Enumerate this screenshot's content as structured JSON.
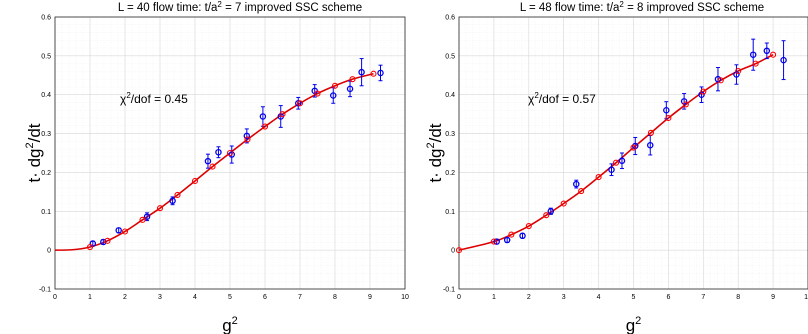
{
  "chart_data": [
    {
      "type": "scatter",
      "title_parts": [
        "L = 40  flow time: t/a",
        "2",
        " = 7   improved SSC scheme"
      ],
      "xlabel_parts": [
        "g",
        "2"
      ],
      "ylabel_parts": [
        "t",
        "·",
        " dg",
        "2",
        "/dt"
      ],
      "annotation_parts": [
        "χ",
        "2",
        "/dof = 0.45"
      ],
      "xlim": [
        0,
        10
      ],
      "ylim": [
        -0.1,
        0.6
      ],
      "xticks": [
        "0",
        "1",
        "2",
        "3",
        "4",
        "5",
        "6",
        "7",
        "8",
        "9",
        "10"
      ],
      "xtick_values": [
        0,
        1,
        2,
        3,
        4,
        5,
        6,
        7,
        8,
        9,
        10
      ],
      "yticks": [
        "-0.1",
        "0",
        "0.1",
        "0.2",
        "0.3",
        "0.4",
        "0.5",
        "0.6"
      ],
      "ytick_values": [
        -0.1,
        0,
        0.1,
        0.2,
        0.3,
        0.4,
        0.5,
        0.6
      ],
      "grid": true,
      "colors": {
        "data": "#0000ee",
        "fit": "#ff0000",
        "fit_curve": "#dd0000",
        "grid": "#d8d8d8"
      },
      "series": [
        {
          "kind": "data-with-errorbars",
          "x": [
            1.08,
            1.38,
            1.82,
            2.63,
            3.36,
            4.37,
            4.67,
            5.05,
            5.48,
            5.94,
            6.45,
            6.95,
            7.42,
            7.95,
            8.43,
            8.76,
            9.3
          ],
          "y": [
            0.017,
            0.021,
            0.051,
            0.086,
            0.127,
            0.229,
            0.252,
            0.246,
            0.294,
            0.344,
            0.344,
            0.378,
            0.41,
            0.398,
            0.415,
            0.458,
            0.456
          ],
          "err": [
            0.006,
            0.006,
            0.006,
            0.01,
            0.01,
            0.018,
            0.014,
            0.022,
            0.018,
            0.025,
            0.028,
            0.015,
            0.016,
            0.02,
            0.02,
            0.035,
            0.02
          ]
        },
        {
          "kind": "fit-points",
          "x": [
            1.0,
            1.5,
            2.0,
            2.5,
            3.0,
            3.5,
            4.0,
            4.5,
            5.0,
            5.5,
            6.0,
            6.5,
            7.0,
            7.5,
            8.0,
            8.5,
            9.1
          ],
          "y": [
            0.008,
            0.024,
            0.048,
            0.078,
            0.108,
            0.142,
            0.178,
            0.215,
            0.25,
            0.285,
            0.318,
            0.35,
            0.378,
            0.403,
            0.423,
            0.44,
            0.454
          ]
        }
      ]
    },
    {
      "type": "scatter",
      "title_parts": [
        "L = 48  flow time: t/a",
        "2",
        " = 8   improved SSC scheme"
      ],
      "xlabel_parts": [
        "g",
        "2"
      ],
      "ylabel_parts": [
        "t",
        "·",
        " dg",
        "2",
        "/dt"
      ],
      "annotation_parts": [
        "χ",
        "2",
        "/dof = 0.57"
      ],
      "xlim": [
        0,
        10
      ],
      "ylim": [
        -0.1,
        0.6
      ],
      "xticks": [
        "0",
        "1",
        "2",
        "3",
        "4",
        "5",
        "6",
        "7",
        "8",
        "9",
        "10"
      ],
      "xtick_values": [
        0,
        1,
        2,
        3,
        4,
        5,
        6,
        7,
        8,
        9,
        10
      ],
      "yticks": [
        "-0.1",
        "0",
        "0.1",
        "0.2",
        "0.3",
        "0.4",
        "0.5",
        "0.6"
      ],
      "ytick_values": [
        -0.1,
        0,
        0.1,
        0.2,
        0.3,
        0.4,
        0.5,
        0.6
      ],
      "grid": true,
      "colors": {
        "data": "#0000ee",
        "fit": "#ff0000",
        "fit_curve": "#dd0000",
        "grid": "#d8d8d8"
      },
      "series": [
        {
          "kind": "data-with-errorbars",
          "x": [
            1.08,
            1.38,
            1.82,
            2.63,
            3.36,
            4.37,
            4.67,
            5.05,
            5.48,
            5.94,
            6.45,
            6.95,
            7.42,
            7.95,
            8.43,
            8.82,
            9.3
          ],
          "y": [
            0.022,
            0.026,
            0.037,
            0.1,
            0.17,
            0.207,
            0.23,
            0.268,
            0.27,
            0.36,
            0.383,
            0.4,
            0.44,
            0.452,
            0.503,
            0.513,
            0.489
          ],
          "err": [
            0.006,
            0.006,
            0.006,
            0.008,
            0.01,
            0.015,
            0.02,
            0.022,
            0.025,
            0.022,
            0.02,
            0.02,
            0.03,
            0.025,
            0.04,
            0.02,
            0.05
          ]
        },
        {
          "kind": "fit-points",
          "x": [
            0.0,
            1.0,
            1.5,
            2.0,
            2.5,
            3.0,
            3.5,
            4.0,
            4.5,
            5.0,
            5.5,
            6.0,
            6.5,
            7.0,
            7.5,
            8.0,
            8.5,
            9.0
          ],
          "y": [
            0.0,
            0.022,
            0.04,
            0.062,
            0.09,
            0.12,
            0.152,
            0.188,
            0.225,
            0.264,
            0.302,
            0.34,
            0.375,
            0.408,
            0.437,
            0.461,
            0.48,
            0.503
          ]
        }
      ]
    }
  ]
}
